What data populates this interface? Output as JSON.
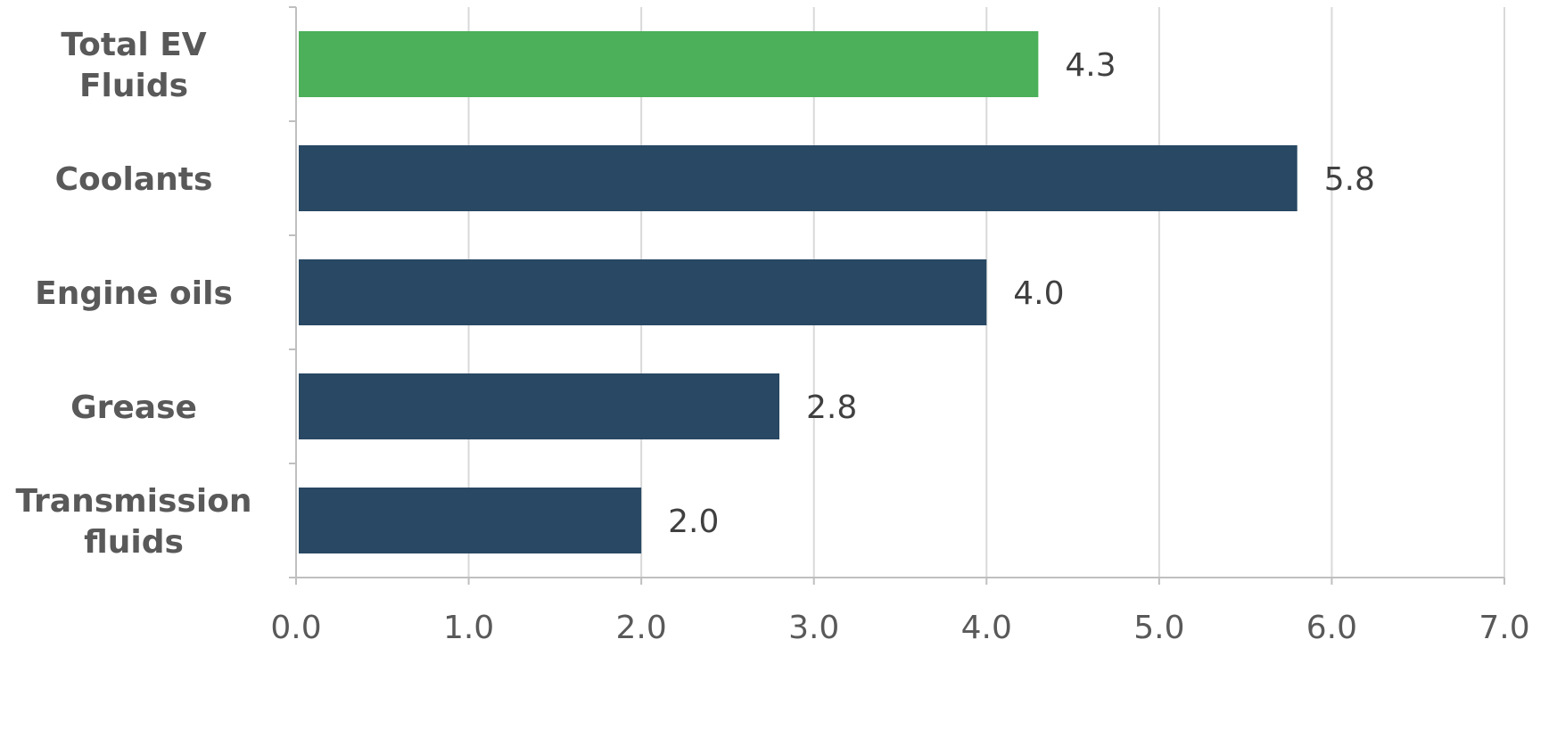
{
  "chart_data": {
    "type": "bar",
    "orientation": "horizontal",
    "categories": [
      [
        "Total EV",
        "Fluids"
      ],
      [
        "Coolants"
      ],
      [
        "Engine oils"
      ],
      [
        "Grease"
      ],
      [
        "Transmission",
        "fluids"
      ]
    ],
    "values": [
      4.3,
      5.8,
      4.0,
      2.8,
      2.0
    ],
    "value_labels": [
      "4.3",
      "5.8",
      "4.0",
      "2.8",
      "2.0"
    ],
    "bar_colors": [
      "#4caf5a",
      "#284863",
      "#284863",
      "#284863",
      "#284863"
    ],
    "xlim": [
      0,
      7
    ],
    "x_ticks": [
      "0.0",
      "1.0",
      "2.0",
      "3.0",
      "4.0",
      "5.0",
      "6.0",
      "7.0"
    ],
    "grid": "vertical",
    "title": "",
    "xlabel": "",
    "ylabel": "",
    "legend": "none"
  }
}
